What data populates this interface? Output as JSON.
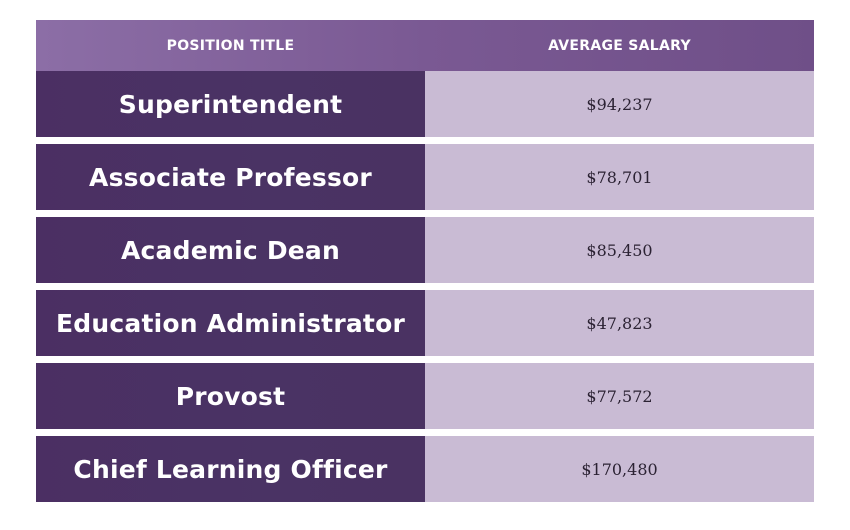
{
  "chart_data": {
    "type": "table",
    "columns": [
      "POSITION TITLE",
      "AVERAGE SALARY"
    ],
    "rows": [
      {
        "title": "Superintendent",
        "salary": "$94,237",
        "value": 94237
      },
      {
        "title": "Associate Professor",
        "salary": "$78,701",
        "value": 78701
      },
      {
        "title": "Academic Dean",
        "salary": "$85,450",
        "value": 85450
      },
      {
        "title": "Education Administrator",
        "salary": "$47,823",
        "value": 47823
      },
      {
        "title": "Provost",
        "salary": "$77,572",
        "value": 77572
      },
      {
        "title": "Chief Learning Officer",
        "salary": "$170,480",
        "value": 170480
      }
    ]
  },
  "colors": {
    "header_bg": "#7a5993",
    "title_cell_bg": "#4a3262",
    "salary_cell_bg": "#c9bbd4",
    "header_text": "#ffffff",
    "salary_text": "#2b2233"
  }
}
